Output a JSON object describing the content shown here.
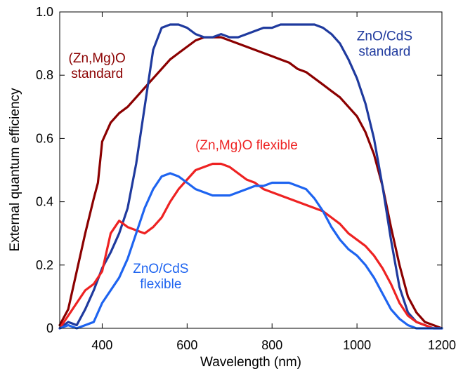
{
  "chart_data": {
    "type": "line",
    "xlabel": "Wavelength (nm)",
    "ylabel": "External quantum efficiency",
    "xlim": [
      300,
      1200
    ],
    "ylim": [
      0,
      1.0
    ],
    "x_ticks": [
      400,
      600,
      800,
      1000,
      1200
    ],
    "x_tick_labels": [
      "400",
      "600",
      "800",
      "1000",
      "1200"
    ],
    "y_ticks": [
      0,
      0.2,
      0.4,
      0.6,
      0.8,
      1.0
    ],
    "y_tick_labels": [
      "0",
      "0.2",
      "0.4",
      "0.6",
      "0.8",
      "1.0"
    ],
    "grid": false,
    "series": [
      {
        "name": "(Zn,Mg)O standard",
        "color": "#8b0000",
        "points": [
          [
            300,
            0.01
          ],
          [
            320,
            0.06
          ],
          [
            340,
            0.18
          ],
          [
            360,
            0.3
          ],
          [
            380,
            0.41
          ],
          [
            390,
            0.46
          ],
          [
            400,
            0.59
          ],
          [
            420,
            0.65
          ],
          [
            440,
            0.68
          ],
          [
            460,
            0.7
          ],
          [
            480,
            0.73
          ],
          [
            500,
            0.76
          ],
          [
            520,
            0.79
          ],
          [
            540,
            0.82
          ],
          [
            560,
            0.85
          ],
          [
            580,
            0.87
          ],
          [
            600,
            0.89
          ],
          [
            620,
            0.91
          ],
          [
            640,
            0.92
          ],
          [
            660,
            0.92
          ],
          [
            680,
            0.92
          ],
          [
            700,
            0.91
          ],
          [
            720,
            0.9
          ],
          [
            740,
            0.89
          ],
          [
            760,
            0.88
          ],
          [
            780,
            0.87
          ],
          [
            800,
            0.86
          ],
          [
            820,
            0.85
          ],
          [
            840,
            0.84
          ],
          [
            860,
            0.82
          ],
          [
            880,
            0.81
          ],
          [
            900,
            0.79
          ],
          [
            920,
            0.77
          ],
          [
            940,
            0.75
          ],
          [
            960,
            0.73
          ],
          [
            980,
            0.7
          ],
          [
            1000,
            0.67
          ],
          [
            1020,
            0.62
          ],
          [
            1040,
            0.55
          ],
          [
            1060,
            0.45
          ],
          [
            1080,
            0.32
          ],
          [
            1100,
            0.2
          ],
          [
            1120,
            0.1
          ],
          [
            1140,
            0.05
          ],
          [
            1160,
            0.02
          ],
          [
            1180,
            0.01
          ],
          [
            1200,
            0.0
          ]
        ]
      },
      {
        "name": "ZnO/CdS standard",
        "color": "#1f3a9e",
        "points": [
          [
            300,
            0.0
          ],
          [
            320,
            0.02
          ],
          [
            340,
            0.01
          ],
          [
            360,
            0.06
          ],
          [
            380,
            0.12
          ],
          [
            400,
            0.19
          ],
          [
            420,
            0.24
          ],
          [
            440,
            0.3
          ],
          [
            460,
            0.38
          ],
          [
            480,
            0.52
          ],
          [
            500,
            0.7
          ],
          [
            520,
            0.88
          ],
          [
            540,
            0.95
          ],
          [
            560,
            0.96
          ],
          [
            580,
            0.96
          ],
          [
            600,
            0.95
          ],
          [
            620,
            0.93
          ],
          [
            640,
            0.92
          ],
          [
            660,
            0.92
          ],
          [
            680,
            0.93
          ],
          [
            700,
            0.92
          ],
          [
            720,
            0.92
          ],
          [
            740,
            0.93
          ],
          [
            760,
            0.94
          ],
          [
            780,
            0.95
          ],
          [
            800,
            0.95
          ],
          [
            820,
            0.96
          ],
          [
            840,
            0.96
          ],
          [
            860,
            0.96
          ],
          [
            880,
            0.96
          ],
          [
            900,
            0.96
          ],
          [
            920,
            0.95
          ],
          [
            940,
            0.93
          ],
          [
            960,
            0.9
          ],
          [
            980,
            0.85
          ],
          [
            1000,
            0.79
          ],
          [
            1020,
            0.71
          ],
          [
            1040,
            0.6
          ],
          [
            1060,
            0.45
          ],
          [
            1080,
            0.28
          ],
          [
            1100,
            0.13
          ],
          [
            1120,
            0.05
          ],
          [
            1140,
            0.02
          ],
          [
            1160,
            0.01
          ],
          [
            1180,
            0.0
          ],
          [
            1200,
            0.0
          ]
        ]
      },
      {
        "name": "(Zn,Mg)O flexible",
        "color": "#ee2222",
        "points": [
          [
            300,
            0.0
          ],
          [
            320,
            0.04
          ],
          [
            340,
            0.08
          ],
          [
            360,
            0.12
          ],
          [
            380,
            0.14
          ],
          [
            400,
            0.18
          ],
          [
            420,
            0.3
          ],
          [
            440,
            0.34
          ],
          [
            460,
            0.32
          ],
          [
            480,
            0.31
          ],
          [
            500,
            0.3
          ],
          [
            520,
            0.32
          ],
          [
            540,
            0.35
          ],
          [
            560,
            0.4
          ],
          [
            580,
            0.44
          ],
          [
            600,
            0.47
          ],
          [
            620,
            0.5
          ],
          [
            640,
            0.51
          ],
          [
            660,
            0.52
          ],
          [
            680,
            0.52
          ],
          [
            700,
            0.51
          ],
          [
            720,
            0.49
          ],
          [
            740,
            0.47
          ],
          [
            760,
            0.46
          ],
          [
            780,
            0.44
          ],
          [
            800,
            0.43
          ],
          [
            820,
            0.42
          ],
          [
            840,
            0.41
          ],
          [
            860,
            0.4
          ],
          [
            880,
            0.39
          ],
          [
            900,
            0.38
          ],
          [
            920,
            0.37
          ],
          [
            940,
            0.35
          ],
          [
            960,
            0.33
          ],
          [
            980,
            0.3
          ],
          [
            1000,
            0.28
          ],
          [
            1020,
            0.26
          ],
          [
            1040,
            0.23
          ],
          [
            1060,
            0.19
          ],
          [
            1080,
            0.14
          ],
          [
            1100,
            0.08
          ],
          [
            1120,
            0.04
          ],
          [
            1140,
            0.02
          ],
          [
            1160,
            0.01
          ],
          [
            1180,
            0.0
          ],
          [
            1200,
            0.0
          ]
        ]
      },
      {
        "name": "ZnO/CdS flexible",
        "color": "#1e64f0",
        "points": [
          [
            300,
            0.0
          ],
          [
            320,
            0.01
          ],
          [
            340,
            0.0
          ],
          [
            360,
            0.01
          ],
          [
            380,
            0.02
          ],
          [
            400,
            0.08
          ],
          [
            420,
            0.12
          ],
          [
            440,
            0.16
          ],
          [
            460,
            0.22
          ],
          [
            480,
            0.3
          ],
          [
            500,
            0.38
          ],
          [
            520,
            0.44
          ],
          [
            540,
            0.48
          ],
          [
            560,
            0.49
          ],
          [
            580,
            0.48
          ],
          [
            600,
            0.46
          ],
          [
            620,
            0.44
          ],
          [
            640,
            0.43
          ],
          [
            660,
            0.42
          ],
          [
            680,
            0.42
          ],
          [
            700,
            0.42
          ],
          [
            720,
            0.43
          ],
          [
            740,
            0.44
          ],
          [
            760,
            0.45
          ],
          [
            780,
            0.45
          ],
          [
            800,
            0.46
          ],
          [
            820,
            0.46
          ],
          [
            840,
            0.46
          ],
          [
            860,
            0.45
          ],
          [
            880,
            0.44
          ],
          [
            900,
            0.41
          ],
          [
            920,
            0.37
          ],
          [
            940,
            0.32
          ],
          [
            960,
            0.28
          ],
          [
            980,
            0.25
          ],
          [
            1000,
            0.23
          ],
          [
            1020,
            0.2
          ],
          [
            1040,
            0.16
          ],
          [
            1060,
            0.11
          ],
          [
            1080,
            0.06
          ],
          [
            1100,
            0.03
          ],
          [
            1120,
            0.01
          ],
          [
            1140,
            0.0
          ],
          [
            1160,
            0.0
          ],
          [
            1180,
            0.0
          ],
          [
            1200,
            0.0
          ]
        ]
      }
    ],
    "annotations": [
      {
        "name": "zno-cds-standard",
        "lines": [
          "ZnO/CdS",
          "standard"
        ],
        "color": "#1f3a9e",
        "x": 1065,
        "y": 0.91
      },
      {
        "name": "znmgo-standard",
        "lines": [
          "(Zn,Mg)O",
          "standard"
        ],
        "color": "#8b0000",
        "x": 388,
        "y": 0.84
      },
      {
        "name": "znmgo-flexible",
        "lines": [
          "(Zn,Mg)O flexible"
        ],
        "color": "#ee2222",
        "x": 740,
        "y": 0.565
      },
      {
        "name": "zno-cds-flexible",
        "lines": [
          "ZnO/CdS",
          "flexible"
        ],
        "color": "#1e64f0",
        "x": 538,
        "y": 0.175
      }
    ]
  }
}
